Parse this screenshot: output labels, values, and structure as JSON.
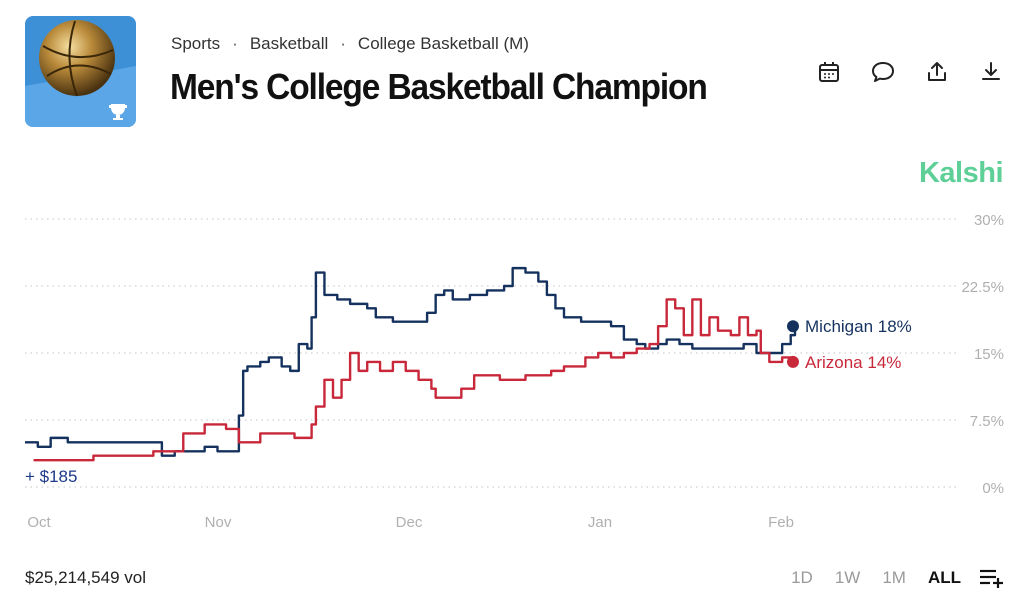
{
  "breadcrumb": [
    "Sports",
    "Basketball",
    "College Basketball (M)"
  ],
  "title": "Men's College Basketball Champion",
  "toolbar": [
    {
      "name": "calendar-icon"
    },
    {
      "name": "comment-icon"
    },
    {
      "name": "share-icon"
    },
    {
      "name": "download-icon"
    }
  ],
  "brand": "Kalshi",
  "volume": "$25,214,549 vol",
  "ranges": [
    "1D",
    "1W",
    "1M",
    "ALL"
  ],
  "active_range": "ALL",
  "colors": {
    "michigan": "#15325f",
    "arizona": "#c8283a",
    "grid": "#cfcfcf",
    "brand": "#5fcf98"
  },
  "chart_data": {
    "type": "line",
    "y_ticks": [
      "30%",
      "22.5%",
      "15%",
      "7.5%",
      "0%"
    ],
    "ylim": [
      0,
      30
    ],
    "x_ticks": [
      "Oct",
      "Nov",
      "Dec",
      "Jan",
      "Feb"
    ],
    "annotation": "+ $185",
    "series": [
      {
        "name": "Michigan",
        "end_label": "Michigan 18%",
        "color": "#15325f",
        "values": [
          [
            0,
            5
          ],
          [
            3,
            4.5
          ],
          [
            6,
            5.5
          ],
          [
            10,
            5
          ],
          [
            14,
            5
          ],
          [
            18,
            5
          ],
          [
            22,
            5
          ],
          [
            26,
            5
          ],
          [
            30,
            5
          ],
          [
            32,
            3.5
          ],
          [
            35,
            4
          ],
          [
            38,
            4
          ],
          [
            42,
            4.5
          ],
          [
            45,
            4
          ],
          [
            48,
            4
          ],
          [
            50,
            8
          ],
          [
            51,
            13
          ],
          [
            52,
            13.5
          ],
          [
            55,
            14
          ],
          [
            57,
            14.5
          ],
          [
            60,
            13.5
          ],
          [
            62,
            13
          ],
          [
            64,
            16
          ],
          [
            66,
            15.5
          ],
          [
            67,
            19
          ],
          [
            68,
            24
          ],
          [
            70,
            21.5
          ],
          [
            73,
            21
          ],
          [
            76,
            20.5
          ],
          [
            80,
            20
          ],
          [
            82,
            19
          ],
          [
            86,
            18.5
          ],
          [
            90,
            18.5
          ],
          [
            94,
            19.5
          ],
          [
            96,
            21.5
          ],
          [
            98,
            22
          ],
          [
            100,
            21
          ],
          [
            104,
            21.5
          ],
          [
            108,
            22
          ],
          [
            112,
            22.5
          ],
          [
            114,
            24.5
          ],
          [
            117,
            24
          ],
          [
            120,
            23
          ],
          [
            122,
            21.5
          ],
          [
            124,
            20
          ],
          [
            126,
            19
          ],
          [
            130,
            18.5
          ],
          [
            134,
            18.5
          ],
          [
            137,
            18
          ],
          [
            140,
            16.5
          ],
          [
            143,
            16
          ],
          [
            145,
            15.5
          ],
          [
            148,
            16
          ],
          [
            150,
            16.5
          ],
          [
            153,
            16
          ],
          [
            156,
            15.5
          ],
          [
            160,
            15.5
          ],
          [
            164,
            15.5
          ],
          [
            168,
            16
          ],
          [
            171,
            15
          ],
          [
            174,
            15
          ],
          [
            177,
            16
          ],
          [
            179,
            17
          ],
          [
            180,
            18
          ]
        ]
      },
      {
        "name": "Arizona",
        "end_label": "Arizona 14%",
        "color": "#c8283a",
        "values": [
          [
            2,
            3
          ],
          [
            8,
            3
          ],
          [
            13,
            3
          ],
          [
            16,
            3.5
          ],
          [
            21,
            3.5
          ],
          [
            26,
            3.5
          ],
          [
            30,
            4
          ],
          [
            35,
            4
          ],
          [
            37,
            6
          ],
          [
            42,
            7
          ],
          [
            47,
            6.5
          ],
          [
            50,
            5
          ],
          [
            55,
            6
          ],
          [
            60,
            6
          ],
          [
            63,
            5.5
          ],
          [
            67,
            7
          ],
          [
            68,
            9
          ],
          [
            70,
            12
          ],
          [
            72,
            10
          ],
          [
            74,
            12
          ],
          [
            76,
            15
          ],
          [
            78,
            13
          ],
          [
            80,
            14
          ],
          [
            83,
            13
          ],
          [
            86,
            14
          ],
          [
            89,
            13
          ],
          [
            92,
            12
          ],
          [
            95,
            11
          ],
          [
            96,
            10
          ],
          [
            99,
            10
          ],
          [
            102,
            11
          ],
          [
            105,
            12.5
          ],
          [
            108,
            12.5
          ],
          [
            111,
            12
          ],
          [
            114,
            12
          ],
          [
            117,
            12.5
          ],
          [
            120,
            12.5
          ],
          [
            123,
            13
          ],
          [
            126,
            13.5
          ],
          [
            129,
            13.5
          ],
          [
            131,
            14.5
          ],
          [
            134,
            15
          ],
          [
            137,
            14.5
          ],
          [
            140,
            15
          ],
          [
            143,
            15.5
          ],
          [
            146,
            16
          ],
          [
            148,
            18
          ],
          [
            150,
            21
          ],
          [
            152,
            20
          ],
          [
            154,
            17
          ],
          [
            156,
            21
          ],
          [
            158,
            17
          ],
          [
            160,
            19
          ],
          [
            162,
            17.5
          ],
          [
            165,
            17
          ],
          [
            167,
            19
          ],
          [
            169,
            17
          ],
          [
            171,
            17.5
          ],
          [
            172,
            15
          ],
          [
            174,
            14
          ],
          [
            177,
            14.5
          ],
          [
            179,
            14
          ],
          [
            180,
            14
          ]
        ]
      }
    ]
  }
}
